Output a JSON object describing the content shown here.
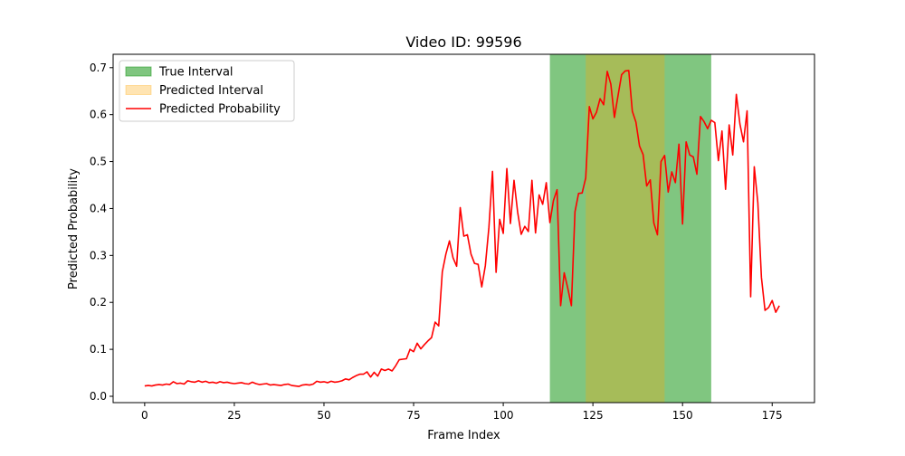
{
  "chart_data": {
    "type": "line",
    "title": "Video ID: 99596",
    "xlabel": "Frame Index",
    "ylabel": "Predicted Probability",
    "xlim": [
      -8.8,
      186.8
    ],
    "ylim": [
      -0.0135,
      0.7285
    ],
    "xticks": [
      0,
      25,
      50,
      75,
      100,
      125,
      150,
      175
    ],
    "yticks": [
      0.0,
      0.1,
      0.2,
      0.3,
      0.4,
      0.5,
      0.6,
      0.7
    ],
    "ytick_labels": [
      "0.0",
      "0.1",
      "0.2",
      "0.3",
      "0.4",
      "0.5",
      "0.6",
      "0.7"
    ],
    "grid": false,
    "legend_position": "upper-left",
    "legend": [
      {
        "label": "True Interval",
        "kind": "patch",
        "color": "#2ca02c"
      },
      {
        "label": "Predicted Interval",
        "kind": "patch",
        "color": "#ffa500"
      },
      {
        "label": "Predicted Probability",
        "kind": "line",
        "color": "#ff0000"
      }
    ],
    "intervals": [
      {
        "name": "True Interval",
        "start": 113,
        "end": 158,
        "color": "#2ca02c",
        "alpha": 0.6
      },
      {
        "name": "Predicted Interval",
        "start": 123,
        "end": 145,
        "color": "#ffa500",
        "alpha": 0.3
      }
    ],
    "series": [
      {
        "name": "Predicted Probability",
        "color": "#ff0000",
        "x_start": 0,
        "x_step": 1,
        "values": [
          0.022,
          0.023,
          0.022,
          0.024,
          0.025,
          0.024,
          0.026,
          0.025,
          0.031,
          0.027,
          0.028,
          0.026,
          0.033,
          0.031,
          0.03,
          0.033,
          0.03,
          0.032,
          0.029,
          0.03,
          0.028,
          0.031,
          0.029,
          0.03,
          0.028,
          0.027,
          0.028,
          0.029,
          0.027,
          0.026,
          0.03,
          0.027,
          0.025,
          0.026,
          0.027,
          0.024,
          0.025,
          0.024,
          0.023,
          0.025,
          0.026,
          0.023,
          0.022,
          0.021,
          0.024,
          0.025,
          0.024,
          0.026,
          0.032,
          0.03,
          0.031,
          0.029,
          0.032,
          0.03,
          0.031,
          0.033,
          0.037,
          0.035,
          0.04,
          0.044,
          0.047,
          0.047,
          0.052,
          0.041,
          0.051,
          0.043,
          0.058,
          0.055,
          0.058,
          0.054,
          0.065,
          0.078,
          0.079,
          0.08,
          0.1,
          0.095,
          0.113,
          0.101,
          0.11,
          0.118,
          0.125,
          0.158,
          0.15,
          0.265,
          0.303,
          0.331,
          0.295,
          0.277,
          0.402,
          0.341,
          0.344,
          0.303,
          0.283,
          0.281,
          0.233,
          0.278,
          0.36,
          0.479,
          0.264,
          0.377,
          0.347,
          0.485,
          0.368,
          0.46,
          0.393,
          0.345,
          0.362,
          0.351,
          0.46,
          0.348,
          0.429,
          0.409,
          0.455,
          0.37,
          0.417,
          0.44,
          0.193,
          0.263,
          0.23,
          0.193,
          0.393,
          0.432,
          0.433,
          0.465,
          0.617,
          0.591,
          0.605,
          0.634,
          0.621,
          0.692,
          0.665,
          0.594,
          0.64,
          0.685,
          0.693,
          0.694,
          0.607,
          0.584,
          0.533,
          0.515,
          0.448,
          0.461,
          0.369,
          0.344,
          0.5,
          0.513,
          0.435,
          0.478,
          0.455,
          0.537,
          0.367,
          0.542,
          0.514,
          0.51,
          0.473,
          0.596,
          0.585,
          0.57,
          0.588,
          0.583,
          0.502,
          0.565,
          0.441,
          0.578,
          0.514,
          0.643,
          0.58,
          0.542,
          0.608,
          0.212,
          0.489,
          0.412,
          0.253,
          0.183,
          0.189,
          0.204,
          0.179,
          0.193
        ]
      }
    ]
  }
}
